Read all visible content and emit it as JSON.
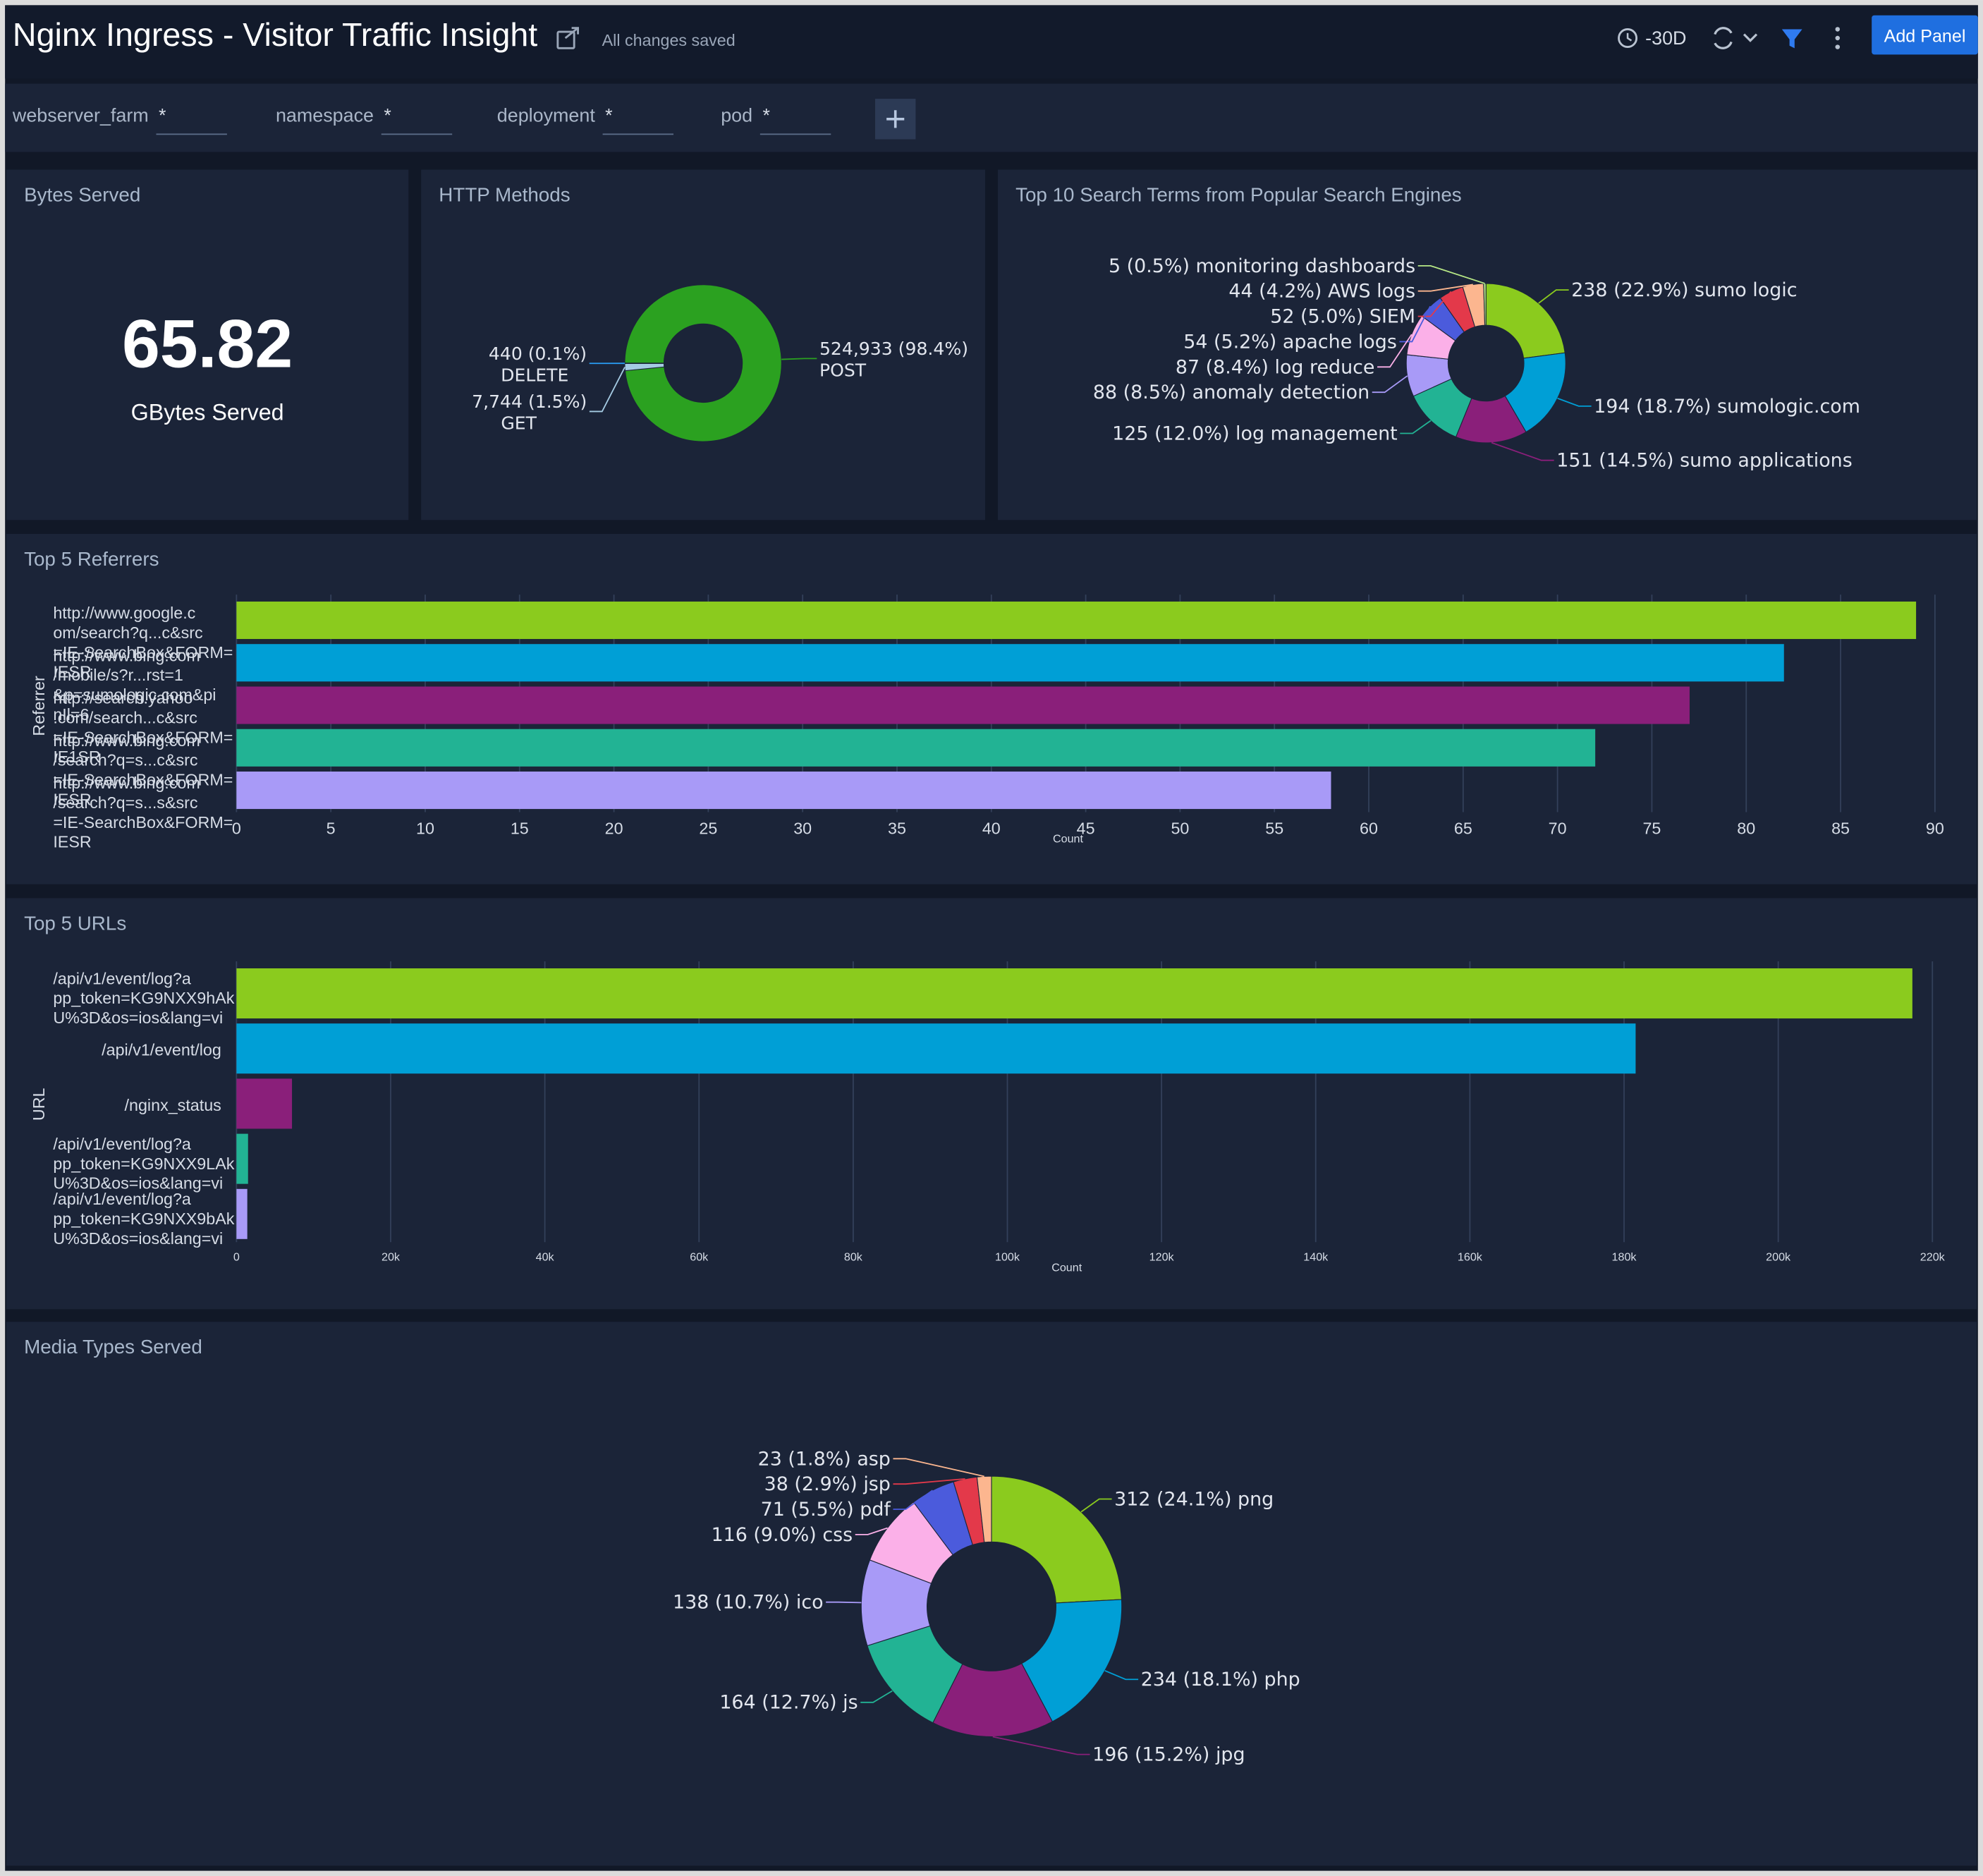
{
  "header": {
    "title": "Nginx Ingress - Visitor Traffic Insight",
    "status": "All changes saved",
    "time_range": "-30D",
    "add_panel": "Add Panel"
  },
  "filters": [
    {
      "name": "webserver_farm",
      "value": "*"
    },
    {
      "name": "namespace",
      "value": "*"
    },
    {
      "name": "deployment",
      "value": "*"
    },
    {
      "name": "pod",
      "value": "*"
    }
  ],
  "panels": [
    {
      "type": "single_value",
      "title": "Bytes Served",
      "value": 65.82,
      "unit": "GBytes Served"
    },
    {
      "type": "pie",
      "title": "HTTP Methods",
      "categories": [
        "POST",
        "GET",
        "DELETE"
      ],
      "values": [
        524933,
        7744,
        440
      ],
      "value_labels": [
        "524,933 (98.4%)",
        "7,744 (1.5%)",
        "440 (0.1%)"
      ],
      "colors": [
        "#2ba120",
        "#a5cbe3",
        "#2a9df4"
      ]
    },
    {
      "type": "pie",
      "title": "Top 10 Search Terms from Popular Search Engines",
      "categories": [
        "sumo logic",
        "sumologic.com",
        "sumo applications",
        "log management",
        "anomaly detection",
        "log reduce",
        "apache logs",
        "SIEM",
        "AWS logs",
        "monitoring dashboards"
      ],
      "values": [
        238,
        194,
        151,
        125,
        88,
        87,
        54,
        52,
        44,
        5
      ],
      "value_labels": [
        "238 (22.9%)",
        "194 (18.7%)",
        "151 (14.5%)",
        "125 (12.0%)",
        "88 (8.5%)",
        "87 (8.4%)",
        "54 (5.2%)",
        "52 (5.0%)",
        "44 (4.2%)",
        "5 (0.5%)"
      ],
      "colors": [
        "#8bcb1e",
        "#009fd6",
        "#8a1f7a",
        "#22b394",
        "#a89af7",
        "#fbb0e8",
        "#4b5bdc",
        "#e3394a",
        "#fcb68f",
        "#b8e986"
      ]
    },
    {
      "type": "bar",
      "title": "Top 5 Referrers",
      "x_label": "Count",
      "y_label": "Referrer",
      "categories": [
        "http://www.google.com/search?q...c&src=IE-SearchBox&FORM=IESR",
        "http://www.bing.com/mobile/s?r...rst=1&p=sumologic.com&pinIl=6",
        "http://search.yahoo.com/search...c&src=IE-SearchBox&FORM=IE1SR",
        "http://www.bing.com/search?q=s...c&src=IE-SearchBox&FORM=IESR",
        "http://www.bing.com/search?q=s...s&src=IE-SearchBox&FORM=IESR"
      ],
      "values": [
        89,
        82,
        77,
        72,
        58
      ],
      "colors": [
        "#8bcb1e",
        "#009fd6",
        "#8a1f7a",
        "#22b394",
        "#a89af7"
      ],
      "xlim": [
        0,
        90
      ],
      "xticks": [
        0,
        5,
        10,
        15,
        20,
        25,
        30,
        35,
        40,
        45,
        50,
        55,
        60,
        65,
        70,
        75,
        80,
        85,
        90
      ],
      "grid": true
    },
    {
      "type": "bar",
      "title": "Top 5 URLs",
      "x_label": "Count",
      "y_label": "URL",
      "categories": [
        "/api/v1/event/log?app_token=KG9NXX9hAkU%3D&os=ios&lang=vi",
        "/api/v1/event/log",
        "/nginx_status",
        "/api/v1/event/log?app_token=KG9NXX9LAkU%3D&os=ios&lang=vi",
        "/api/v1/event/log?app_token=KG9NXX9bAkU%3D&os=ios&lang=vi"
      ],
      "values": [
        217400,
        181500,
        7200,
        1500,
        1400
      ],
      "colors": [
        "#8bcb1e",
        "#009fd6",
        "#8a1f7a",
        "#22b394",
        "#a89af7"
      ],
      "xlim": [
        0,
        220000
      ],
      "xticks": [
        0,
        {
          "value": 20000,
          "label": "20k"
        },
        {
          "value": 40000,
          "label": "40k"
        },
        {
          "value": 60000,
          "label": "60k"
        },
        {
          "value": 80000,
          "label": "80k"
        },
        {
          "value": 100000,
          "label": "100k"
        },
        {
          "value": 120000,
          "label": "120k"
        },
        {
          "value": 140000,
          "label": "140k"
        },
        {
          "value": 160000,
          "label": "160k"
        },
        {
          "value": 180000,
          "label": "180k"
        },
        {
          "value": 200000,
          "label": "200k"
        },
        {
          "value": 220000,
          "label": "220k"
        }
      ],
      "grid": true
    },
    {
      "type": "pie",
      "title": "Media Types Served",
      "categories": [
        "png",
        "php",
        "jpg",
        "js",
        "ico",
        "css",
        "pdf",
        "jsp",
        "asp"
      ],
      "values": [
        312,
        234,
        196,
        164,
        138,
        116,
        71,
        38,
        23
      ],
      "value_labels": [
        "312 (24.1%)",
        "234 (18.1%)",
        "196 (15.2%)",
        "164 (12.7%)",
        "138 (10.7%)",
        "116 (9.0%)",
        "71 (5.5%)",
        "38 (2.9%)",
        "23 (1.8%)"
      ],
      "colors": [
        "#8bcb1e",
        "#009fd6",
        "#8a1f7a",
        "#22b394",
        "#a89af7",
        "#fbb0e8",
        "#4b5bdc",
        "#e3394a",
        "#fcb68f"
      ]
    }
  ]
}
